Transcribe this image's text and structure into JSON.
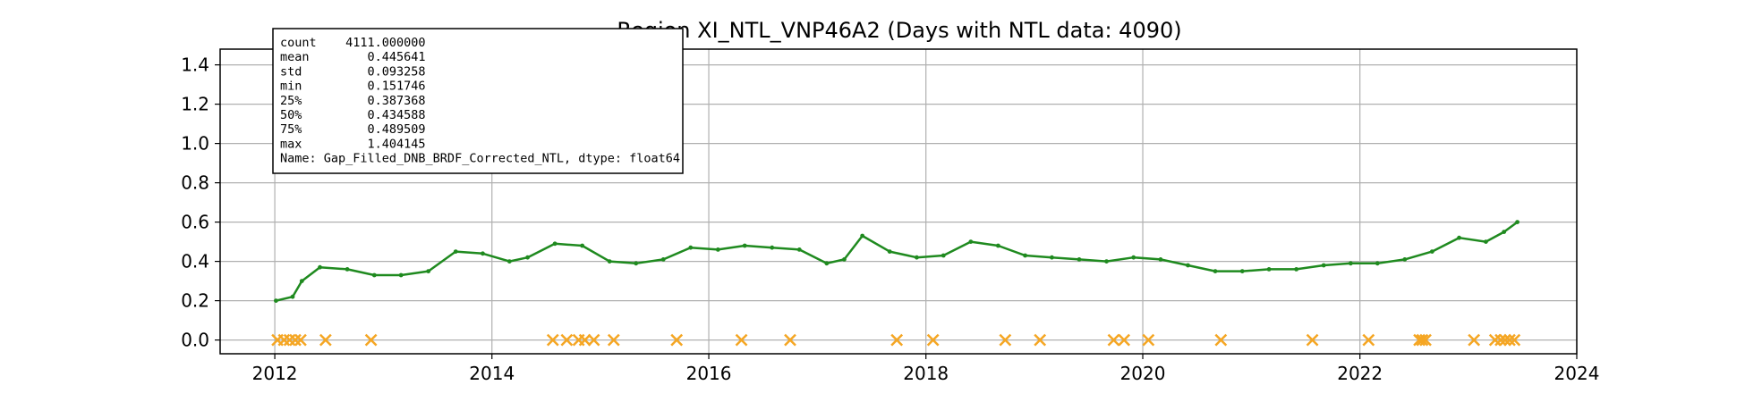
{
  "chart_data": {
    "type": "line",
    "title": "Region XI_NTL_VNP46A2 (Days with NTL data: 4090)",
    "xlabel": "",
    "ylabel": "",
    "x_ticks": [
      "2012",
      "2014",
      "2016",
      "2018",
      "2020",
      "2022",
      "2024"
    ],
    "y_ticks": [
      "0.0",
      "0.2",
      "0.4",
      "0.6",
      "0.8",
      "1.0",
      "1.2",
      "1.4"
    ],
    "xlim": [
      "2011-07-01",
      "2024-01-01"
    ],
    "ylim": [
      -0.07,
      1.48
    ],
    "grid": true,
    "colors": {
      "series": "#1f8a1f",
      "series_light": "#6fc36f",
      "markers": "#f5a623",
      "grid": "#b0b0b0",
      "axis": "#000000"
    },
    "series": [
      {
        "type": "line",
        "x": [
          "2012-01-05",
          "2012-03-01",
          "2012-04-01",
          "2012-06-01",
          "2012-09-01",
          "2012-12-01",
          "2013-03-01",
          "2013-06-01",
          "2013-09-01",
          "2013-12-01",
          "2014-03-01",
          "2014-05-01",
          "2014-08-01",
          "2014-11-01",
          "2015-02-01",
          "2015-05-01",
          "2015-08-01",
          "2015-11-01",
          "2016-02-01",
          "2016-05-01",
          "2016-08-01",
          "2016-11-01",
          "2017-02-01",
          "2017-04-01",
          "2017-06-01",
          "2017-09-01",
          "2017-12-01",
          "2018-03-01",
          "2018-06-01",
          "2018-09-01",
          "2018-12-01",
          "2019-03-01",
          "2019-06-01",
          "2019-09-01",
          "2019-12-01",
          "2020-03-01",
          "2020-06-01",
          "2020-09-01",
          "2020-12-01",
          "2021-03-01",
          "2021-06-01",
          "2021-09-01",
          "2021-12-01",
          "2022-03-01",
          "2022-06-01",
          "2022-09-01",
          "2022-12-01",
          "2023-03-01",
          "2023-05-01",
          "2023-06-15"
        ],
        "y": [
          0.2,
          0.22,
          0.3,
          0.37,
          0.36,
          0.33,
          0.33,
          0.35,
          0.45,
          0.44,
          0.4,
          0.42,
          0.49,
          0.48,
          0.4,
          0.39,
          0.41,
          0.47,
          0.46,
          0.48,
          0.47,
          0.46,
          0.39,
          0.41,
          0.53,
          0.45,
          0.42,
          0.43,
          0.5,
          0.48,
          0.43,
          0.42,
          0.41,
          0.4,
          0.42,
          0.41,
          0.38,
          0.35,
          0.35,
          0.36,
          0.36,
          0.38,
          0.39,
          0.39,
          0.41,
          0.45,
          0.52,
          0.5,
          0.55,
          0.6
        ]
      }
    ],
    "missing_markers": {
      "x": [
        "2012-01-10",
        "2012-02-01",
        "2012-02-20",
        "2012-03-10",
        "2012-03-28",
        "2012-06-20",
        "2012-11-20",
        "2014-07-25",
        "2014-09-10",
        "2014-10-20",
        "2014-11-10",
        "2014-12-10",
        "2015-02-15",
        "2015-09-15",
        "2016-04-20",
        "2016-10-01",
        "2017-09-25",
        "2018-01-25",
        "2018-09-25",
        "2019-01-20",
        "2019-09-25",
        "2019-10-30",
        "2020-01-20",
        "2020-09-20",
        "2021-07-25",
        "2022-01-30",
        "2022-07-20",
        "2022-07-30",
        "2022-08-10",
        "2023-01-20",
        "2023-04-01",
        "2023-04-20",
        "2023-05-05",
        "2023-05-20",
        "2023-06-05"
      ],
      "y": 0.0
    },
    "annotation_lines": [
      "count    4111.000000",
      "mean        0.445641",
      "std         0.093258",
      "min         0.151746",
      "25%         0.387368",
      "50%         0.434588",
      "75%         0.489509",
      "max         1.404145",
      "Name: Gap_Filled_DNB_BRDF_Corrected_NTL, dtype: float64"
    ]
  }
}
